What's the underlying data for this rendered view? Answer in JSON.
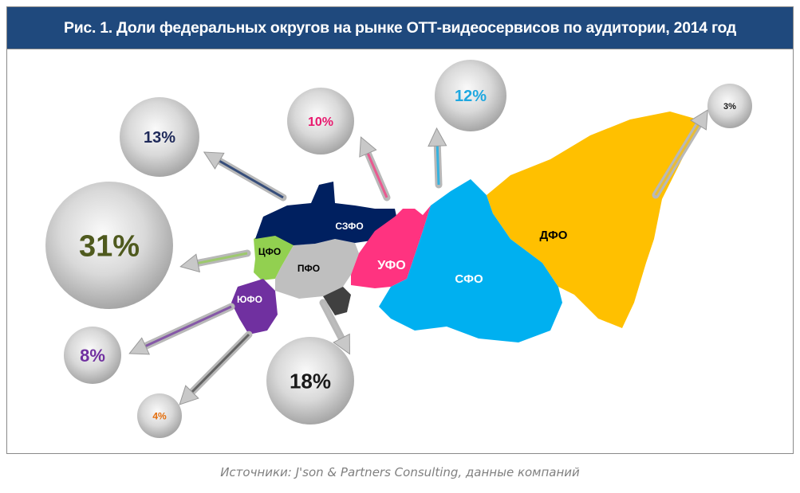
{
  "title": "Рис. 1. Доли федеральных округов на рынке ОТТ-видеосервисов  по аудитории, 2014 год",
  "source": "Источники: J'son & Partners Consulting, данные компаний",
  "chart_data": {
    "type": "map-bubble",
    "title": "Рис. 1. Доли федеральных округов на рынке ОТТ-видеосервисов  по аудитории, 2014 год",
    "unit": "%",
    "regions": [
      {
        "label": "ЦФО",
        "value": 31,
        "display": "31%",
        "color": "#92d050",
        "text_color": "#4f5a1e"
      },
      {
        "label": "ПФО",
        "value": 18,
        "display": "18%",
        "color": "#bfbfbf",
        "text_color": "#1a1a1a"
      },
      {
        "label": "СЗФО",
        "value": 13,
        "display": "13%",
        "color": "#002060",
        "text_color": "#1f2a5a"
      },
      {
        "label": "СФО",
        "value": 12,
        "display": "12%",
        "color": "#00b0f0",
        "text_color": "#1fa8e0"
      },
      {
        "label": "УФО",
        "value": 10,
        "display": "10%",
        "color": "#ff3380",
        "text_color": "#e8196e"
      },
      {
        "label": "ЮФО",
        "value": 8,
        "display": "8%",
        "color": "#7030a0",
        "text_color": "#7030a0"
      },
      {
        "label": "",
        "value": 4,
        "display": "4%",
        "color": "#404040",
        "text_color": "#e36c09"
      },
      {
        "label": "ДФО",
        "value": 3,
        "display": "3%",
        "color": "#ffc000",
        "text_color": "#1a1a1a"
      }
    ]
  }
}
